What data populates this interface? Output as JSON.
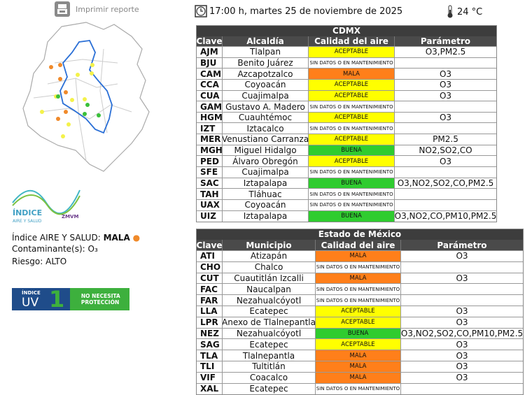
{
  "header": {
    "print_button": "Imprimir reporte",
    "datetime": "17:00 h, martes 25 de noviembre de 2025",
    "temperature": "24 °C"
  },
  "logo": {
    "title": "ÍNDICE",
    "subtitle": "AIRE Y SALUD",
    "region": "ZMVM"
  },
  "summary": {
    "index_label": "Índice AIRE Y SALUD:",
    "index_value": "MALA",
    "pollutant_label": "Contaminante(s):",
    "pollutant_value": "O₃",
    "risk_label": "Riesgo:",
    "risk_value": "ALTO"
  },
  "uv": {
    "label_top": "ÍNDICE",
    "label_uv": "UV",
    "value": "1",
    "advice": "NO NECESITA PROTECCIÓN"
  },
  "quality_colors": {
    "ACEPTABLE": "#ffff00",
    "MALA": "#ff7f1a",
    "BUENA": "#2fcc2f",
    "SIN DATOS O EN MANTENIMIENTO": "#ffffff"
  },
  "tables": [
    {
      "title": "CDMX",
      "columns": [
        "Clave",
        "Alcaldía",
        "Calidad del aire",
        "Parámetro"
      ],
      "rows": [
        [
          "AJM",
          "Tlalpan",
          "ACEPTABLE",
          "O3,PM2.5"
        ],
        [
          "BJU",
          "Benito Juárez",
          "SIN DATOS O EN MANTENIMIENTO"
        ],
        [
          "CAM",
          "Azcapotzalco",
          "MALA",
          "O3"
        ],
        [
          "CCA",
          "Coyoacán",
          "ACEPTABLE",
          "O3"
        ],
        [
          "CUA",
          "Cuajimalpa",
          "ACEPTABLE",
          "O3"
        ],
        [
          "GAM",
          "Gustavo A. Madero",
          "SIN DATOS O EN MANTENIMIENTO"
        ],
        [
          "HGM",
          "Cuauhtémoc",
          "ACEPTABLE",
          "O3"
        ],
        [
          "IZT",
          "Iztacalco",
          "SIN DATOS O EN MANTENIMIENTO"
        ],
        [
          "MER",
          "Venustiano Carranza",
          "ACEPTABLE",
          "PM2.5"
        ],
        [
          "MGH",
          "Miguel Hidalgo",
          "BUENA",
          "NO2,SO2,CO"
        ],
        [
          "PED",
          "Álvaro Obregón",
          "ACEPTABLE",
          "O3"
        ],
        [
          "SFE",
          "Cuajimalpa",
          "SIN DATOS O EN MANTENIMIENTO"
        ],
        [
          "SAC",
          "Iztapalapa",
          "BUENA",
          "O3,NO2,SO2,CO,PM2.5"
        ],
        [
          "TAH",
          "Tláhuac",
          "SIN DATOS O EN MANTENIMIENTO"
        ],
        [
          "UAX",
          "Coyoacán",
          "SIN DATOS O EN MANTENIMIENTO"
        ],
        [
          "UIZ",
          "Iztapalapa",
          "BUENA",
          "O3,NO2,CO,PM10,PM2.5"
        ]
      ]
    },
    {
      "title": "Estado de México",
      "columns": [
        "Clave",
        "Municipio",
        "Calidad del aire",
        "Parámetro"
      ],
      "rows": [
        [
          "ATI",
          "Atizapán",
          "MALA",
          "O3"
        ],
        [
          "CHO",
          "Chalco",
          "SIN DATOS O EN MANTENIMIENTO"
        ],
        [
          "CUT",
          "Cuautitlán Izcalli",
          "MALA",
          "O3"
        ],
        [
          "FAC",
          "Naucalpan",
          "SIN DATOS O EN MANTENIMIENTO"
        ],
        [
          "FAR",
          "Nezahualcóyotl",
          "SIN DATOS O EN MANTENIMIENTO"
        ],
        [
          "LLA",
          "Ecatepec",
          "ACEPTABLE",
          "O3"
        ],
        [
          "LPR",
          "Anexo de Tlalnepantla",
          "ACEPTABLE",
          "O3"
        ],
        [
          "NEZ",
          "Nezahualcóyotl",
          "BUENA",
          "O3,NO2,SO2,CO,PM10,PM2.5"
        ],
        [
          "SAG",
          "Ecatepec",
          "ACEPTABLE",
          "O3"
        ],
        [
          "TLA",
          "Tlalnepantla",
          "MALA",
          "O3"
        ],
        [
          "TLI",
          "Tultitlán",
          "MALA",
          "O3"
        ],
        [
          "VIF",
          "Coacalco",
          "MALA",
          "O3"
        ],
        [
          "XAL",
          "Ecatepec",
          "SIN DATOS O EN MANTENIMIENTO"
        ]
      ]
    }
  ]
}
